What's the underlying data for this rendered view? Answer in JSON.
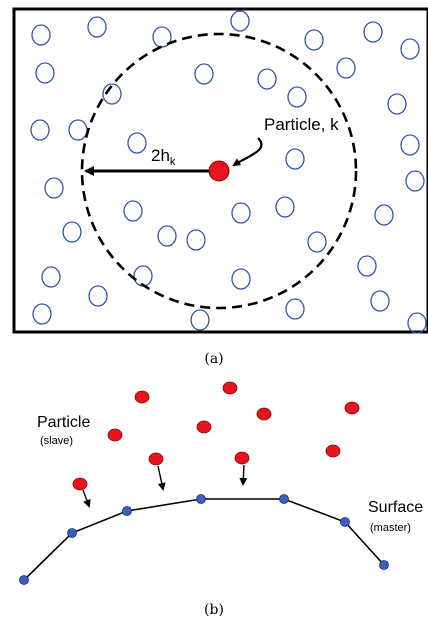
{
  "panel_a": {
    "caption": "(a)",
    "particle_label": "Particle, k",
    "radius_label": "2h",
    "radius_subscript": "k",
    "colors": {
      "frame": "#000000",
      "neighbor_particle": "#3355aa",
      "center_particle": "#e8141c",
      "influence_circle": "#000000"
    }
  },
  "panel_b": {
    "caption": "(b)",
    "particle_label": "Particle",
    "particle_sublabel": "(slave)",
    "surface_label": "Surface",
    "surface_sublabel": "(master)",
    "colors": {
      "particle": "#e8141c",
      "surface_node": "#3a5fc4",
      "surface_line": "#000000"
    }
  }
}
